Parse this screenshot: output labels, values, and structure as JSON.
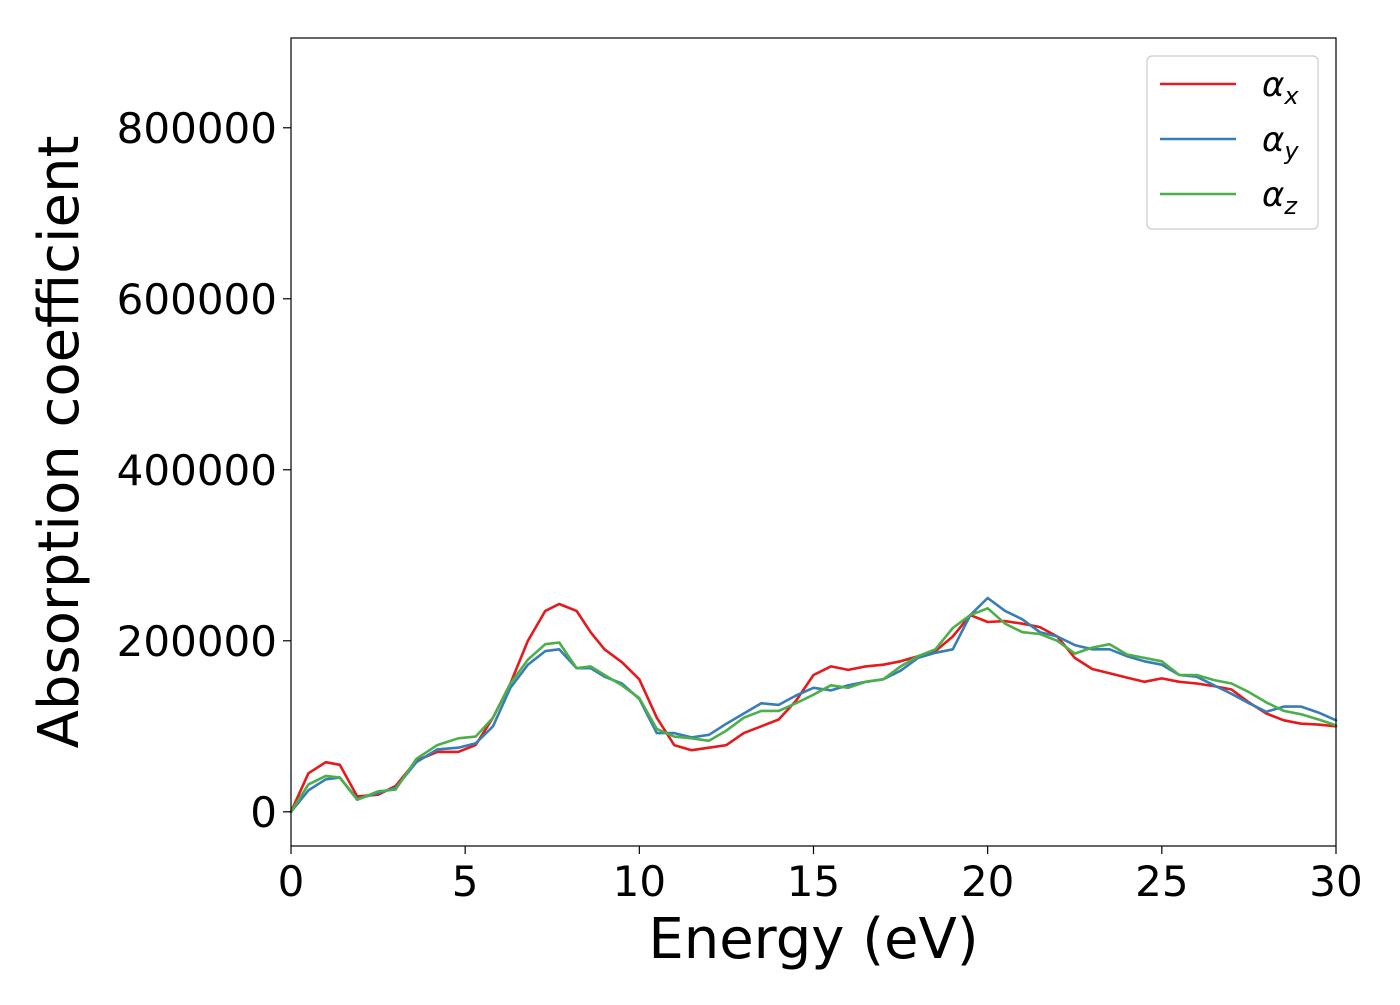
{
  "chart_data": {
    "type": "line",
    "title": "",
    "xlabel": "Energy (eV)",
    "ylabel": "Absorption coefficient",
    "xlim": [
      0,
      30
    ],
    "ylim": [
      -40000,
      905000
    ],
    "xticks": [
      0,
      5,
      10,
      15,
      20,
      25,
      30
    ],
    "xtick_labels": [
      "0",
      "5",
      "10",
      "15",
      "20",
      "25",
      "30"
    ],
    "yticks": [
      0,
      200000,
      400000,
      600000,
      800000
    ],
    "ytick_labels": [
      "0",
      "200000",
      "400000",
      "600000",
      "800000"
    ],
    "grid": false,
    "legend_position": "top-right",
    "series": [
      {
        "name": "α_x",
        "legend_base": "α",
        "legend_sub": "x",
        "color": "#e41a1c",
        "x": [
          0,
          0.5,
          1.0,
          1.4,
          1.9,
          2.5,
          3.0,
          3.6,
          4.2,
          4.8,
          5.3,
          5.8,
          6.3,
          6.8,
          7.3,
          7.7,
          8.2,
          8.6,
          9.0,
          9.5,
          10.0,
          10.5,
          11.0,
          11.5,
          12.0,
          12.5,
          13.0,
          13.5,
          14.0,
          14.5,
          15.0,
          15.5,
          16.0,
          16.5,
          17.0,
          17.5,
          18.0,
          18.5,
          19.0,
          19.5,
          20.0,
          20.5,
          21.0,
          21.5,
          22.0,
          22.5,
          23.0,
          23.5,
          24.0,
          24.5,
          25.0,
          25.5,
          26.0,
          26.5,
          27.0,
          27.5,
          28.0,
          28.5,
          29.0,
          29.5,
          30.0
        ],
        "y": [
          0,
          45000,
          58000,
          55000,
          18000,
          20000,
          30000,
          60000,
          70000,
          70000,
          78000,
          110000,
          150000,
          200000,
          235000,
          243000,
          235000,
          210000,
          190000,
          175000,
          155000,
          110000,
          78000,
          72000,
          75000,
          78000,
          92000,
          100000,
          108000,
          130000,
          160000,
          170000,
          166000,
          170000,
          172000,
          176000,
          182000,
          188000,
          205000,
          230000,
          222000,
          223000,
          220000,
          216000,
          205000,
          180000,
          167000,
          162000,
          157000,
          152000,
          156000,
          152000,
          150000,
          147000,
          143000,
          128000,
          115000,
          107000,
          103000,
          102000,
          100000
        ]
      },
      {
        "name": "α_y",
        "legend_base": "α",
        "legend_sub": "y",
        "color": "#377eb8",
        "x": [
          0,
          0.5,
          1.0,
          1.4,
          1.9,
          2.5,
          3.0,
          3.6,
          4.2,
          4.8,
          5.3,
          5.8,
          6.3,
          6.8,
          7.3,
          7.7,
          8.2,
          8.6,
          9.0,
          9.5,
          10.0,
          10.5,
          11.0,
          11.5,
          12.0,
          12.5,
          13.0,
          13.5,
          14.0,
          14.5,
          15.0,
          15.5,
          16.0,
          16.5,
          17.0,
          17.5,
          18.0,
          18.5,
          19.0,
          19.5,
          20.0,
          20.5,
          21.0,
          21.5,
          22.0,
          22.5,
          23.0,
          23.5,
          24.0,
          24.5,
          25.0,
          25.5,
          26.0,
          26.5,
          27.0,
          27.5,
          28.0,
          28.5,
          29.0,
          29.5,
          30.0
        ],
        "y": [
          0,
          25000,
          38000,
          40000,
          15000,
          22000,
          28000,
          58000,
          73000,
          75000,
          80000,
          100000,
          145000,
          172000,
          188000,
          190000,
          168000,
          168000,
          158000,
          150000,
          132000,
          92000,
          92000,
          87000,
          90000,
          103000,
          115000,
          127000,
          125000,
          136000,
          145000,
          142000,
          148000,
          152000,
          155000,
          165000,
          180000,
          186000,
          190000,
          230000,
          250000,
          235000,
          225000,
          210000,
          205000,
          195000,
          190000,
          190000,
          182000,
          176000,
          172000,
          160000,
          158000,
          148000,
          138000,
          127000,
          117000,
          123000,
          123000,
          116000,
          107000
        ]
      },
      {
        "name": "α_z",
        "legend_base": "α",
        "legend_sub": "z",
        "color": "#4daf4a",
        "x": [
          0,
          0.5,
          1.0,
          1.4,
          1.9,
          2.5,
          3.0,
          3.6,
          4.2,
          4.8,
          5.3,
          5.8,
          6.3,
          6.8,
          7.3,
          7.7,
          8.2,
          8.6,
          9.0,
          9.5,
          10.0,
          10.5,
          11.0,
          11.5,
          12.0,
          12.5,
          13.0,
          13.5,
          14.0,
          14.5,
          15.0,
          15.5,
          16.0,
          16.5,
          17.0,
          17.5,
          18.0,
          18.5,
          19.0,
          19.5,
          20.0,
          20.5,
          21.0,
          21.5,
          22.0,
          22.5,
          23.0,
          23.5,
          24.0,
          24.5,
          25.0,
          25.5,
          26.0,
          26.5,
          27.0,
          27.5,
          28.0,
          28.5,
          29.0,
          29.5,
          30.0
        ],
        "y": [
          0,
          32000,
          42000,
          40000,
          14000,
          24000,
          26000,
          62000,
          78000,
          86000,
          88000,
          110000,
          150000,
          178000,
          196000,
          198000,
          168000,
          170000,
          160000,
          148000,
          133000,
          97000,
          88000,
          86000,
          83000,
          95000,
          110000,
          118000,
          118000,
          127000,
          137000,
          148000,
          145000,
          152000,
          155000,
          170000,
          182000,
          190000,
          215000,
          230000,
          238000,
          220000,
          210000,
          208000,
          200000,
          185000,
          192000,
          196000,
          184000,
          180000,
          176000,
          160000,
          160000,
          154000,
          150000,
          140000,
          128000,
          118000,
          114000,
          108000,
          101000
        ]
      }
    ]
  }
}
